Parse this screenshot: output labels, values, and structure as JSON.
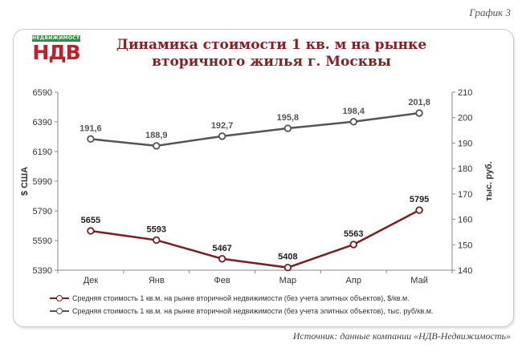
{
  "caption_top": "График 3",
  "caption_bottom": "Источник: данные компании «НДВ-Недвижимость»",
  "logo": {
    "top": "НЕДВИЖИМОСТЬ",
    "main": "НДВ"
  },
  "colors": {
    "usd": "#7a1f22",
    "rub": "#555555",
    "title": "#8a1f22"
  },
  "chart_data": {
    "type": "line",
    "title": "Динамика стоимости 1 кв. м на  рынке вторичного жилья г. Москвы",
    "categories": [
      "Дек",
      "Янв",
      "Фев",
      "Мар",
      "Апр",
      "Май"
    ],
    "ylabel": "$ США",
    "y2label": "тыс. руб.",
    "ylim": [
      5390,
      6590
    ],
    "yticks": [
      "5390",
      "5590",
      "5790",
      "5990",
      "6190",
      "6390",
      "6590"
    ],
    "y2lim": [
      140,
      210
    ],
    "y2ticks": [
      "140",
      "150",
      "160",
      "170",
      "180",
      "190",
      "200",
      "210"
    ],
    "grid": false,
    "legend_position": "bottom",
    "series": [
      {
        "name": "Средняя стоимость 1 кв.м. на рынке вторичной недвижимости (без учета элитных объектов), $/кв.м.",
        "axis": "left",
        "values": [
          5655,
          5593,
          5467,
          5408,
          5563,
          5795
        ],
        "labels": [
          "5655",
          "5593",
          "5467",
          "5408",
          "5563",
          "5795"
        ]
      },
      {
        "name": "Средняя стоимость 1 кв.м. на рынке вторичной недвижимости (без учета элитных объектов), тыс. руб/кв.м.",
        "axis": "right",
        "values": [
          191.6,
          188.9,
          192.7,
          195.8,
          198.4,
          201.8
        ],
        "labels": [
          "191,6",
          "188,9",
          "192,7",
          "195,8",
          "198,4",
          "201,8"
        ]
      }
    ]
  }
}
